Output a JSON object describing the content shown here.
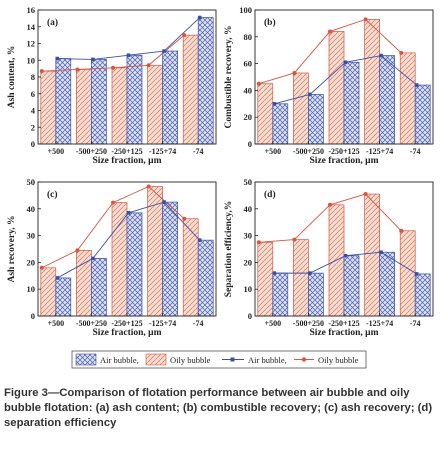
{
  "caption": {
    "figure_label": "Figure 3",
    "text": "Comparison of flotation performance between air bubble and oily bubble flotation: (a) ash content; (b) combustible recovery; (c) ash recovery; (d) separation efficiency"
  },
  "legend": {
    "bar_air": "Air bubble,",
    "bar_oily": "Oily bubble",
    "line_air": "Air bubble,",
    "line_oily": "Oily bubble"
  },
  "colors": {
    "air": "#3a4fa8",
    "oily": "#d9553f",
    "air_fill": "#dfe3f3",
    "oily_fill": "#f7ddd2"
  },
  "chart_data": [
    {
      "panel": "(a)",
      "type": "bar",
      "xlabel": "Size fraction, μm",
      "ylabel": "Ash content, %",
      "categories": [
        "+500",
        "-500+250",
        "-250+125",
        "-125+74",
        "-74"
      ],
      "ylim": [
        0,
        16
      ],
      "yticks": [
        0,
        2,
        4,
        6,
        8,
        10,
        12,
        14,
        16
      ],
      "series": [
        {
          "name": "Oily bubble",
          "values": [
            8.7,
            8.9,
            9.1,
            9.4,
            13.0
          ]
        },
        {
          "name": "Air bubble",
          "values": [
            10.2,
            10.1,
            10.6,
            11.1,
            15.1
          ]
        }
      ]
    },
    {
      "panel": "(b)",
      "type": "bar",
      "xlabel": "Size fraction, μm",
      "ylabel": "Combustible recovery, %",
      "categories": [
        "+500",
        "-500+250",
        "-250+125",
        "-125+74",
        "-74"
      ],
      "ylim": [
        0,
        100
      ],
      "yticks": [
        0,
        20,
        40,
        60,
        80,
        100
      ],
      "series": [
        {
          "name": "Oily bubble",
          "values": [
            45,
            53,
            84,
            93,
            68
          ]
        },
        {
          "name": "Air bubble",
          "values": [
            30,
            37,
            61,
            66,
            44
          ]
        }
      ]
    },
    {
      "panel": "(c)",
      "type": "bar",
      "xlabel": "Size fraction, μm",
      "ylabel": "Ash recovery, %",
      "categories": [
        "+500",
        "-500+250",
        "-250+125",
        "-125+74",
        "-74"
      ],
      "ylim": [
        0,
        50
      ],
      "yticks": [
        0,
        10,
        20,
        30,
        40,
        50
      ],
      "series": [
        {
          "name": "Oily bubble",
          "values": [
            18,
            24.5,
            42.3,
            48.3,
            36.3
          ]
        },
        {
          "name": "Air bubble",
          "values": [
            14.2,
            21.5,
            38.5,
            42.5,
            28.3
          ]
        }
      ]
    },
    {
      "panel": "(d)",
      "type": "bar",
      "xlabel": "Size fraction, μm",
      "ylabel": "Separation efficiency,%",
      "categories": [
        "+500",
        "-500+250",
        "-250+125",
        "-125+74",
        "-74"
      ],
      "ylim": [
        0,
        50
      ],
      "yticks": [
        0,
        10,
        20,
        30,
        40,
        50
      ],
      "series": [
        {
          "name": "Oily bubble",
          "values": [
            27.5,
            28.5,
            41.5,
            45.5,
            31.8
          ]
        },
        {
          "name": "Air bubble",
          "values": [
            16.0,
            16.0,
            22.5,
            23.8,
            15.7
          ]
        }
      ]
    }
  ]
}
